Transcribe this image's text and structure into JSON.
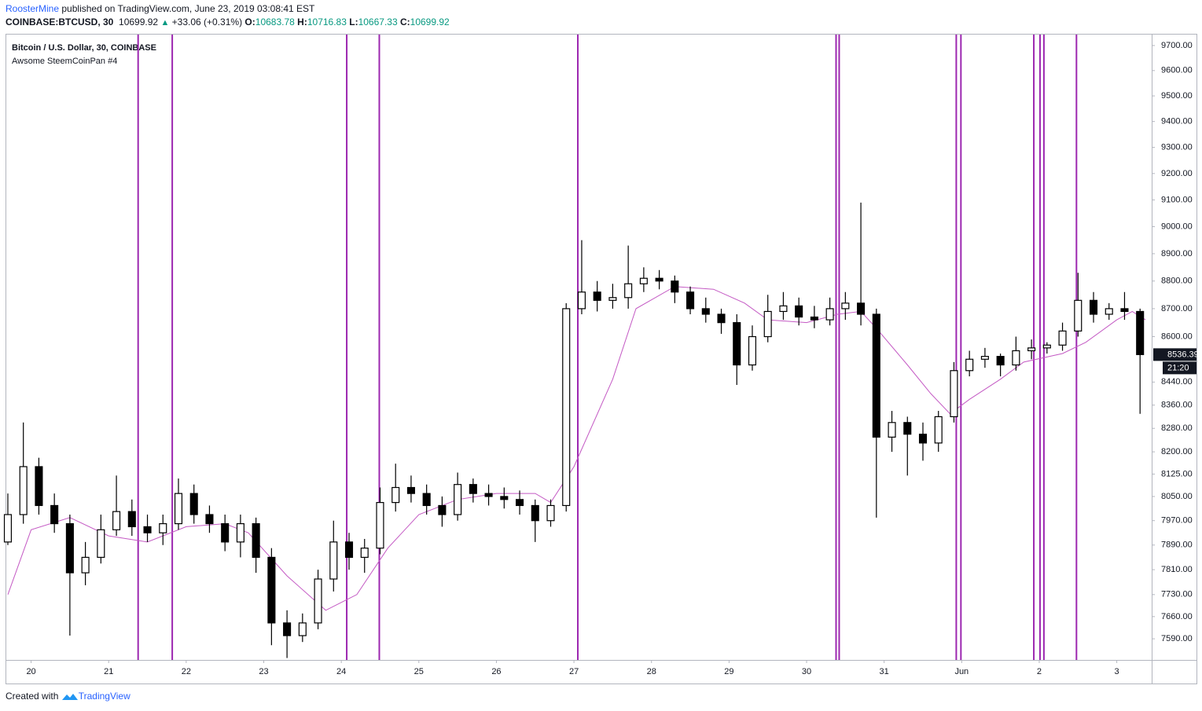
{
  "header": {
    "author": "RoosterMine",
    "published": "published on TradingView.com, June 23, 2019 03:08:41 EST",
    "symbol": "COINBASE:BTCUSD, 30",
    "price": "10699.92",
    "change": "+33.06 (+0.31%)",
    "ohlc": [
      {
        "label": "O:",
        "value": "10683.78"
      },
      {
        "label": "H:",
        "value": "10716.83"
      },
      {
        "label": "L:",
        "value": "10667.33"
      },
      {
        "label": "C:",
        "value": "10699.92"
      }
    ]
  },
  "footer": {
    "created": "Created with",
    "brand": "TradingView"
  },
  "chart_data": {
    "type": "candlestick",
    "legend": [
      "Bitcoin / U.S. Dollar, 30, COINBASE",
      "Awsome SteemCoinPan #4"
    ],
    "log": true,
    "color": "#000000",
    "xlim": [
      19.68,
      34.45
    ],
    "ylim": [
      7524,
      9744
    ],
    "xticks": [
      20,
      21,
      22,
      23,
      24,
      25,
      26,
      27,
      28,
      29,
      30,
      31,
      {
        "value": 32,
        "label": "Jun"
      },
      {
        "value": 33,
        "label": "2"
      },
      {
        "value": 34,
        "label": "3"
      }
    ],
    "yticks": [
      {
        "value": 7590,
        "label": "7590.00"
      },
      {
        "value": 7660,
        "label": "7660.00"
      },
      {
        "value": 7730,
        "label": "7730.00"
      },
      {
        "value": 7810,
        "label": "7810.00"
      },
      {
        "value": 7890,
        "label": "7890.00"
      },
      {
        "value": 7970,
        "label": "7970.00"
      },
      {
        "value": 8050,
        "label": "8050.00"
      },
      {
        "value": 8125,
        "label": "8125.00"
      },
      {
        "value": 8200,
        "label": "8200.00"
      },
      {
        "value": 8280,
        "label": "8280.00"
      },
      {
        "value": 8360,
        "label": "8360.00"
      },
      {
        "value": 8440,
        "label": "8440.00"
      },
      {
        "value": 8600,
        "label": "8600.00"
      },
      {
        "value": 8700,
        "label": "8700.00"
      },
      {
        "value": 8800,
        "label": "8800.00"
      },
      {
        "value": 8900,
        "label": "8900.00"
      },
      {
        "value": 9000,
        "label": "9000.00"
      },
      {
        "value": 9100,
        "label": "9100.00"
      },
      {
        "value": 9200,
        "label": "9200.00"
      },
      {
        "value": 9300,
        "label": "9300.00"
      },
      {
        "value": 9400,
        "label": "9400.00"
      },
      {
        "value": 9500,
        "label": "9500.00"
      },
      {
        "value": 9600,
        "label": "9600.00"
      },
      {
        "value": 9700,
        "label": "9700.00"
      }
    ],
    "x": [
      19.7,
      19.9,
      20.1,
      20.3,
      20.5,
      20.7,
      20.9,
      21.1,
      21.3,
      21.5,
      21.7,
      21.9,
      22.1,
      22.3,
      22.5,
      22.7,
      22.9,
      23.1,
      23.3,
      23.5,
      23.7,
      23.9,
      24.1,
      24.3,
      24.5,
      24.7,
      24.9,
      25.1,
      25.3,
      25.5,
      25.7,
      25.9,
      26.1,
      26.3,
      26.5,
      26.7,
      26.9,
      27.1,
      27.3,
      27.5,
      27.7,
      27.9,
      28.1,
      28.3,
      28.5,
      28.7,
      28.9,
      29.1,
      29.3,
      29.5,
      29.7,
      29.9,
      30.1,
      30.3,
      30.5,
      30.7,
      30.9,
      31.1,
      31.3,
      31.5,
      31.7,
      31.9,
      32.1,
      32.3,
      32.5,
      32.7,
      32.9,
      33.1,
      33.3,
      33.5,
      33.7,
      33.9,
      34.1,
      34.3
    ],
    "open": [
      7900,
      7990,
      8150,
      8020,
      7960,
      7800,
      7850,
      7940,
      8000,
      7950,
      7930,
      7960,
      8060,
      7990,
      7960,
      7900,
      7960,
      7850,
      7640,
      7600,
      7640,
      7780,
      7900,
      7850,
      7880,
      8030,
      8080,
      8060,
      8020,
      7990,
      8090,
      8060,
      8050,
      8040,
      8020,
      7970,
      8020,
      8700,
      8760,
      8730,
      8740,
      8790,
      8810,
      8800,
      8760,
      8700,
      8680,
      8650,
      8500,
      8600,
      8690,
      8710,
      8670,
      8660,
      8700,
      8720,
      8680,
      8250,
      8300,
      8260,
      8230,
      8320,
      8480,
      8520,
      8530,
      8500,
      8550,
      8560,
      8570,
      8620,
      8730,
      8680,
      8700,
      8690
    ],
    "high": [
      8060,
      8300,
      8180,
      8060,
      7990,
      7900,
      7990,
      8120,
      8040,
      7990,
      7990,
      8110,
      8090,
      8020,
      7990,
      7990,
      7980,
      7880,
      7680,
      7670,
      7810,
      7970,
      7930,
      7910,
      8080,
      8160,
      8120,
      8090,
      8050,
      8130,
      8110,
      8090,
      8080,
      8070,
      8040,
      8040,
      8720,
      8950,
      8800,
      8790,
      8930,
      8850,
      8840,
      8820,
      8780,
      8740,
      8700,
      8680,
      8640,
      8750,
      8760,
      8740,
      8710,
      8740,
      8760,
      9090,
      8700,
      8340,
      8320,
      8300,
      8340,
      8510,
      8550,
      8560,
      8540,
      8600,
      8590,
      8580,
      8650,
      8830,
      8760,
      8720,
      8760,
      8700
    ],
    "low": [
      7890,
      7960,
      7990,
      7930,
      7600,
      7760,
      7830,
      7920,
      7920,
      7900,
      7890,
      7940,
      7960,
      7930,
      7870,
      7850,
      7800,
      7570,
      7530,
      7580,
      7620,
      7740,
      7810,
      7800,
      7860,
      8000,
      8030,
      7990,
      7950,
      7970,
      8030,
      8020,
      8010,
      7990,
      7900,
      7950,
      8000,
      8680,
      8690,
      8700,
      8700,
      8760,
      8770,
      8720,
      8680,
      8650,
      8610,
      8430,
      8480,
      8580,
      8660,
      8640,
      8630,
      8640,
      8660,
      8640,
      7980,
      8200,
      8120,
      8170,
      8200,
      8300,
      8460,
      8490,
      8460,
      8480,
      8520,
      8540,
      8550,
      8600,
      8650,
      8660,
      8660,
      8330
    ],
    "close": [
      7990,
      8150,
      8020,
      7960,
      7800,
      7850,
      7940,
      8000,
      7950,
      7930,
      7960,
      8060,
      7990,
      7960,
      7900,
      7960,
      7850,
      7640,
      7600,
      7640,
      7780,
      7900,
      7850,
      7880,
      8030,
      8080,
      8060,
      8020,
      7990,
      8090,
      8060,
      8050,
      8040,
      8020,
      7970,
      8020,
      8700,
      8760,
      8730,
      8740,
      8790,
      8810,
      8800,
      8760,
      8700,
      8680,
      8650,
      8500,
      8600,
      8690,
      8710,
      8670,
      8660,
      8700,
      8720,
      8680,
      8250,
      8300,
      8260,
      8230,
      8320,
      8480,
      8520,
      8530,
      8500,
      8550,
      8560,
      8570,
      8620,
      8730,
      8680,
      8700,
      8690,
      8536.39
    ],
    "countdown": "21:20",
    "ma": {
      "color": "#c45ac4",
      "x": [
        19.7,
        20,
        20.5,
        21,
        21.5,
        22,
        22.5,
        22.8,
        23.3,
        23.8,
        24.2,
        24.6,
        25,
        25.5,
        26,
        26.5,
        26.7,
        27,
        27.5,
        27.8,
        28.3,
        28.8,
        29.2,
        29.5,
        30,
        30.4,
        30.7,
        30.9,
        31.3,
        31.6,
        31.85,
        32.1,
        32.5,
        32.8,
        33.3,
        33.6,
        34,
        34.2,
        34.37
      ],
      "values": [
        7730,
        7940,
        7980,
        7920,
        7900,
        7950,
        7960,
        7930,
        7790,
        7680,
        7730,
        7880,
        7990,
        8040,
        8060,
        8060,
        8030,
        8150,
        8450,
        8700,
        8780,
        8770,
        8720,
        8660,
        8650,
        8680,
        8690,
        8630,
        8500,
        8400,
        8330,
        8380,
        8450,
        8510,
        8540,
        8580,
        8660,
        8690,
        8660
      ]
    },
    "markers": {
      "color": "#9c27b0",
      "x": [
        21.38,
        21.82,
        24.07,
        24.49,
        27.05,
        30.38,
        30.42,
        31.93,
        31.99,
        32.93,
        33.01,
        33.06,
        33.48
      ]
    }
  }
}
